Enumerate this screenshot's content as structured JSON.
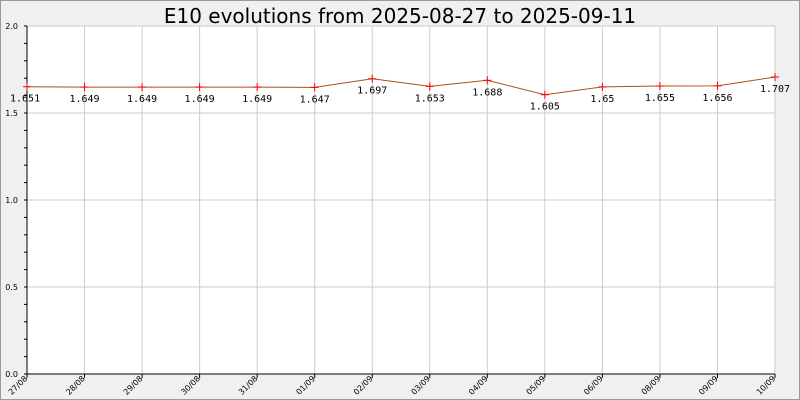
{
  "chart_data": {
    "type": "line",
    "title": "E10 evolutions from 2025-08-27 to 2025-09-11",
    "xlabel": "",
    "ylabel": "",
    "ylim": [
      0,
      2.0
    ],
    "yticks": [
      "0.0",
      "0.5",
      "1.0",
      "1.5",
      "2.0"
    ],
    "grid": true,
    "categories": [
      "27/08",
      "28/08",
      "29/08",
      "30/08",
      "31/08",
      "01/09",
      "02/09",
      "03/09",
      "04/09",
      "05/09",
      "06/09",
      "08/09",
      "09/09",
      "10/09"
    ],
    "series": [
      {
        "values": [
          1.651,
          1.649,
          1.649,
          1.649,
          1.649,
          1.647,
          1.697,
          1.653,
          1.688,
          1.605,
          1.65,
          1.655,
          1.656,
          1.707
        ],
        "labels": [
          "1.651",
          "1.649",
          "1.649",
          "1.649",
          "1.649",
          "1.647",
          "1.697",
          "1.653",
          "1.688",
          "1.605",
          "1.65",
          "1.655",
          "1.656",
          "1.707"
        ]
      }
    ],
    "colors": {
      "background": "#f0f0f0",
      "plot": "#ffffff",
      "grid": "#cccccc",
      "line": "#b05010",
      "marker": "#ff0000",
      "axis": "#000000"
    }
  }
}
